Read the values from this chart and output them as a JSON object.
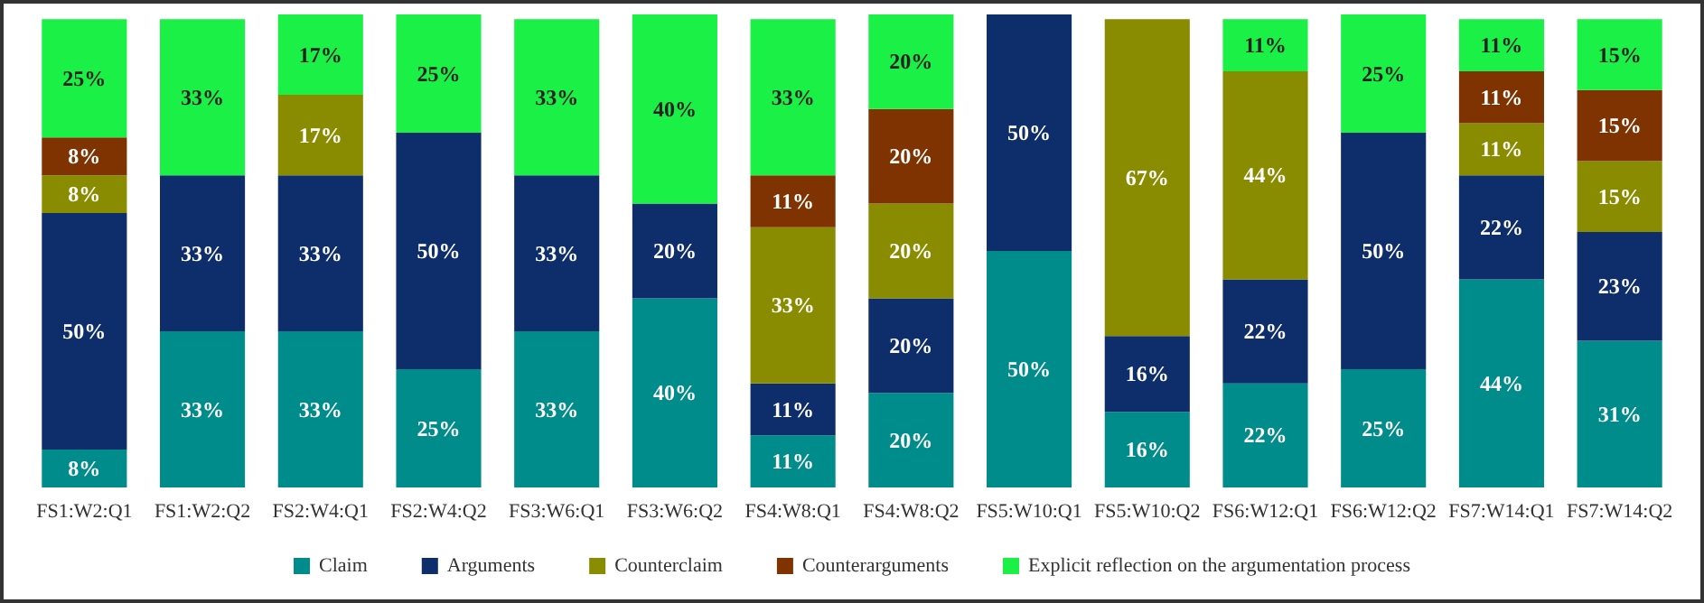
{
  "chart_data": {
    "type": "bar",
    "stacked": true,
    "categories": [
      "FS1:W2:Q1",
      "FS1:W2:Q2",
      "FS2:W4:Q1",
      "FS2:W4:Q2",
      "FS3:W6:Q1",
      "FS3:W6:Q2",
      "FS4:W8:Q1",
      "FS4:W8:Q2",
      "FS5:W10:Q1",
      "FS5:W10:Q2",
      "FS6:W12:Q1",
      "FS6:W12:Q2",
      "FS7:W14:Q1",
      "FS7:W14:Q2"
    ],
    "series": [
      {
        "name": "Claim",
        "color": "#008c8a",
        "values": [
          8,
          33,
          33,
          25,
          33,
          40,
          11,
          20,
          50,
          16,
          22,
          25,
          44,
          31
        ],
        "value_labels": [
          "8%",
          "33%",
          "33%",
          "25%",
          "33%",
          "40%",
          "11%",
          "20%",
          "50%",
          "16%",
          "22%",
          "25%",
          "44%",
          "31%"
        ]
      },
      {
        "name": "Arguments",
        "color": "#0e2d6b",
        "values": [
          50,
          33,
          33,
          50,
          33,
          20,
          11,
          20,
          50,
          16,
          22,
          50,
          22,
          23
        ],
        "value_labels": [
          "50%",
          "33%",
          "33%",
          "50%",
          "33%",
          "20%",
          "11%",
          "20%",
          "50%",
          "16%",
          "22%",
          "50%",
          "22%",
          "23%"
        ]
      },
      {
        "name": "Counterclaim",
        "color": "#8a8c00",
        "values": [
          8,
          0,
          17,
          0,
          0,
          0,
          33,
          20,
          0,
          67,
          44,
          0,
          11,
          15
        ],
        "value_labels": [
          "8%",
          null,
          "17%",
          null,
          null,
          null,
          "33%",
          "20%",
          null,
          "67%",
          "44%",
          null,
          "11%",
          "15%"
        ]
      },
      {
        "name": "Counterarguments",
        "color": "#7f3300",
        "values": [
          8,
          0,
          0,
          0,
          0,
          0,
          11,
          20,
          0,
          0,
          0,
          0,
          11,
          15
        ],
        "value_labels": [
          "8%",
          null,
          null,
          null,
          null,
          null,
          "11%",
          "20%",
          null,
          null,
          null,
          null,
          "11%",
          "15%"
        ]
      },
      {
        "name": "Explicit reflection on the argumentation process",
        "color": "#1af046",
        "values": [
          25,
          33,
          17,
          25,
          33,
          40,
          33,
          20,
          0,
          0,
          11,
          25,
          11,
          15
        ],
        "value_labels": [
          "25%",
          "33%",
          "17%",
          "25%",
          "33%",
          "40%",
          "33%",
          "20%",
          null,
          null,
          "11%",
          "25%",
          "11%",
          "15%"
        ]
      }
    ],
    "ylim": [
      0,
      100
    ],
    "tick_labels": "x",
    "legend": "bottom"
  }
}
